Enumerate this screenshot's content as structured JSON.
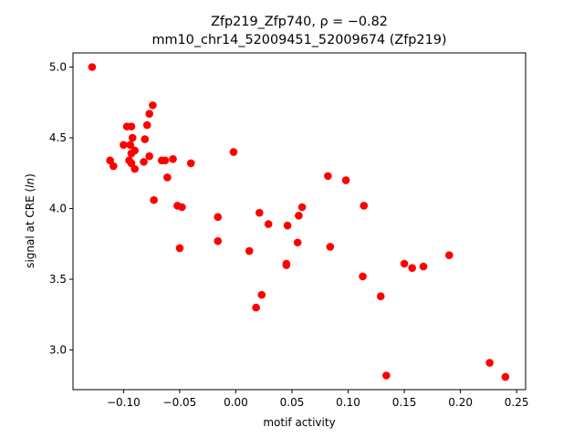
{
  "chart_data": {
    "type": "scatter",
    "title_line1": "Zfp219_Zfp740, ρ = −0.82",
    "title_line2": "mm10_chr14_52009451_52009674 (Zfp219)",
    "xlabel": "motif activity",
    "ylabel": "signal at CRE (ln)",
    "xlim": [
      -0.145,
      0.258
    ],
    "ylim": [
      2.72,
      5.1
    ],
    "x_ticks": [
      -0.1,
      -0.05,
      0.0,
      0.05,
      0.1,
      0.15,
      0.2,
      0.25
    ],
    "x_tick_labels": [
      "−0.10",
      "−0.05",
      "0.00",
      "0.05",
      "0.10",
      "0.15",
      "0.20",
      "0.25"
    ],
    "y_ticks": [
      3.0,
      3.5,
      4.0,
      4.5,
      5.0
    ],
    "y_tick_labels": [
      "3.0",
      "3.5",
      "4.0",
      "4.5",
      "5.0"
    ],
    "grid": false,
    "marker_color": "#ff0000",
    "points": [
      {
        "x": -0.128,
        "y": 5.0
      },
      {
        "x": -0.097,
        "y": 4.58
      },
      {
        "x": -0.093,
        "y": 4.58
      },
      {
        "x": -0.074,
        "y": 4.73
      },
      {
        "x": -0.077,
        "y": 4.67
      },
      {
        "x": -0.079,
        "y": 4.59
      },
      {
        "x": -0.092,
        "y": 4.5
      },
      {
        "x": -0.094,
        "y": 4.45
      },
      {
        "x": -0.1,
        "y": 4.45
      },
      {
        "x": -0.081,
        "y": 4.49
      },
      {
        "x": -0.09,
        "y": 4.41
      },
      {
        "x": -0.093,
        "y": 4.39
      },
      {
        "x": -0.077,
        "y": 4.37
      },
      {
        "x": -0.112,
        "y": 4.34
      },
      {
        "x": -0.109,
        "y": 4.3
      },
      {
        "x": -0.095,
        "y": 4.34
      },
      {
        "x": -0.093,
        "y": 4.32
      },
      {
        "x": -0.082,
        "y": 4.33
      },
      {
        "x": -0.09,
        "y": 4.28
      },
      {
        "x": -0.066,
        "y": 4.34
      },
      {
        "x": -0.063,
        "y": 4.34
      },
      {
        "x": -0.056,
        "y": 4.35
      },
      {
        "x": -0.04,
        "y": 4.32
      },
      {
        "x": -0.002,
        "y": 4.4
      },
      {
        "x": -0.061,
        "y": 4.22
      },
      {
        "x": -0.073,
        "y": 4.06
      },
      {
        "x": -0.052,
        "y": 4.02
      },
      {
        "x": -0.048,
        "y": 4.01
      },
      {
        "x": -0.016,
        "y": 3.94
      },
      {
        "x": -0.016,
        "y": 3.77
      },
      {
        "x": -0.05,
        "y": 3.72
      },
      {
        "x": 0.012,
        "y": 3.7
      },
      {
        "x": 0.021,
        "y": 3.97
      },
      {
        "x": 0.029,
        "y": 3.89
      },
      {
        "x": 0.046,
        "y": 3.88
      },
      {
        "x": 0.056,
        "y": 3.95
      },
      {
        "x": 0.059,
        "y": 4.01
      },
      {
        "x": 0.055,
        "y": 3.76
      },
      {
        "x": 0.045,
        "y": 3.61
      },
      {
        "x": 0.045,
        "y": 3.6
      },
      {
        "x": 0.023,
        "y": 3.39
      },
      {
        "x": 0.018,
        "y": 3.3
      },
      {
        "x": 0.082,
        "y": 4.23
      },
      {
        "x": 0.098,
        "y": 4.2
      },
      {
        "x": 0.084,
        "y": 3.73
      },
      {
        "x": 0.114,
        "y": 4.02
      },
      {
        "x": 0.113,
        "y": 3.52
      },
      {
        "x": 0.129,
        "y": 3.38
      },
      {
        "x": 0.134,
        "y": 2.82
      },
      {
        "x": 0.15,
        "y": 3.61
      },
      {
        "x": 0.157,
        "y": 3.58
      },
      {
        "x": 0.167,
        "y": 3.59
      },
      {
        "x": 0.19,
        "y": 3.67
      },
      {
        "x": 0.226,
        "y": 2.91
      },
      {
        "x": 0.24,
        "y": 2.81
      }
    ]
  }
}
